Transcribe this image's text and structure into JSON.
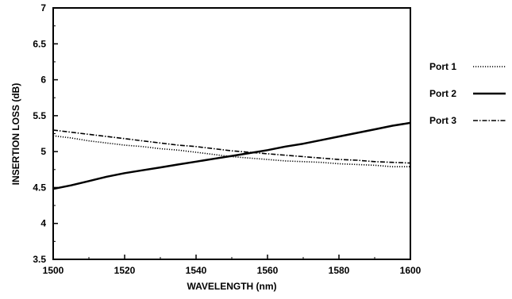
{
  "chart_data": {
    "type": "line",
    "xlabel": "WAVELENGTH (nm)",
    "ylabel": "INSERTION LOSS (dB)",
    "xlim": [
      1500,
      1600
    ],
    "ylim": [
      3.5,
      7
    ],
    "x_ticks": [
      1500,
      1520,
      1540,
      1560,
      1580,
      1600
    ],
    "y_ticks": [
      3.5,
      4,
      4.5,
      5,
      5.5,
      6,
      6.5,
      7
    ],
    "x_tick_labels": [
      "1500",
      "1520",
      "1540",
      "1560",
      "1580",
      "1600"
    ],
    "y_tick_labels": [
      "3.5",
      "4",
      "4.5",
      "5",
      "5.5",
      "6",
      "6.5",
      "7"
    ],
    "grid": false,
    "legend_position": "right",
    "series": [
      {
        "name": "Port 1",
        "style": "dotted",
        "color": "#000000",
        "x": [
          1500,
          1505,
          1510,
          1515,
          1520,
          1525,
          1530,
          1535,
          1540,
          1545,
          1550,
          1555,
          1560,
          1565,
          1570,
          1575,
          1580,
          1585,
          1590,
          1595,
          1600
        ],
        "y": [
          5.22,
          5.19,
          5.15,
          5.12,
          5.09,
          5.07,
          5.04,
          5.02,
          4.99,
          4.96,
          4.93,
          4.91,
          4.89,
          4.87,
          4.86,
          4.85,
          4.83,
          4.82,
          4.81,
          4.79,
          4.79
        ]
      },
      {
        "name": "Port 2",
        "style": "solid",
        "color": "#000000",
        "x": [
          1500,
          1505,
          1510,
          1515,
          1520,
          1525,
          1530,
          1535,
          1540,
          1545,
          1550,
          1555,
          1560,
          1565,
          1570,
          1575,
          1580,
          1585,
          1590,
          1595,
          1600
        ],
        "y": [
          4.48,
          4.53,
          4.59,
          4.65,
          4.7,
          4.74,
          4.78,
          4.82,
          4.86,
          4.9,
          4.94,
          4.98,
          5.02,
          5.07,
          5.11,
          5.16,
          5.21,
          5.26,
          5.31,
          5.36,
          5.4
        ]
      },
      {
        "name": "Port 3",
        "style": "dashdot",
        "color": "#000000",
        "x": [
          1500,
          1505,
          1510,
          1515,
          1520,
          1525,
          1530,
          1535,
          1540,
          1545,
          1550,
          1555,
          1560,
          1565,
          1570,
          1575,
          1580,
          1585,
          1590,
          1595,
          1600
        ],
        "y": [
          5.3,
          5.27,
          5.24,
          5.21,
          5.18,
          5.15,
          5.12,
          5.09,
          5.07,
          5.04,
          5.01,
          4.99,
          4.97,
          4.95,
          4.93,
          4.91,
          4.89,
          4.88,
          4.86,
          4.85,
          4.84
        ]
      }
    ]
  }
}
